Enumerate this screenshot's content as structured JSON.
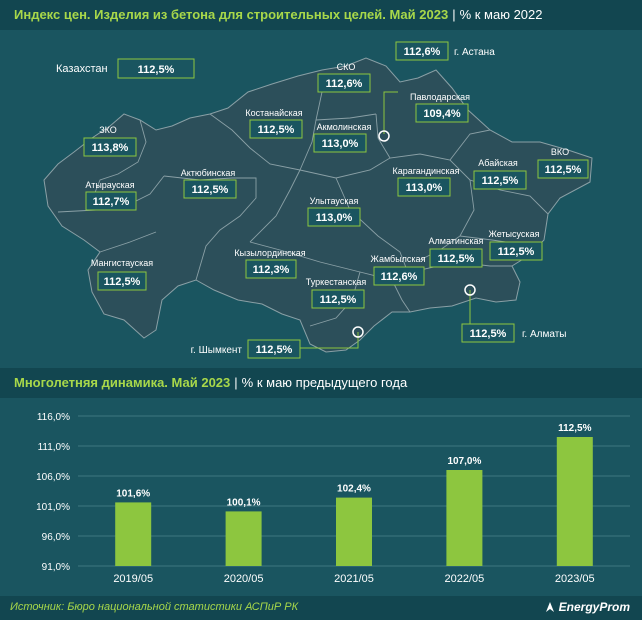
{
  "header_map": {
    "title": "Индекс цен. Изделия из бетона для строительных целей. Май 2023",
    "subtitle": "% к маю 2022"
  },
  "header_chart": {
    "title": "Многолетняя динамика. Май 2023",
    "subtitle": "% к маю предыдущего года"
  },
  "map": {
    "country": {
      "name": "Казахстан",
      "value": "112,5%"
    },
    "regions": [
      {
        "id": "zko",
        "name": "ЗКО",
        "value": "113,8%"
      },
      {
        "id": "atyrau",
        "name": "Атырауская",
        "value": "112,7%"
      },
      {
        "id": "mangystau",
        "name": "Мангистауская",
        "value": "112,5%"
      },
      {
        "id": "aktobe",
        "name": "Актюбинская",
        "value": "112,5%"
      },
      {
        "id": "kostanay",
        "name": "Костанайская",
        "value": "112,5%"
      },
      {
        "id": "sko",
        "name": "СКО",
        "value": "112,6%"
      },
      {
        "id": "akmola",
        "name": "Акмолинская",
        "value": "113,0%"
      },
      {
        "id": "pavlodar",
        "name": "Павлодарская",
        "value": "109,4%"
      },
      {
        "id": "vko",
        "name": "ВКО",
        "value": "112,5%"
      },
      {
        "id": "abay",
        "name": "Абайская",
        "value": "112,5%"
      },
      {
        "id": "karaganda",
        "name": "Карагандинская",
        "value": "113,0%"
      },
      {
        "id": "ulytau",
        "name": "Улытауская",
        "value": "113,0%"
      },
      {
        "id": "kyzylorda",
        "name": "Кызылординская",
        "value": "112,3%"
      },
      {
        "id": "zhetysu",
        "name": "Жетысуская",
        "value": "112,5%"
      },
      {
        "id": "almaty_obl",
        "name": "Алматинская",
        "value": "112,5%"
      },
      {
        "id": "zhambyl",
        "name": "Жамбылская",
        "value": "112,6%"
      },
      {
        "id": "turkestan",
        "name": "Туркестанская",
        "value": "112,5%"
      }
    ],
    "cities": [
      {
        "id": "astana",
        "name": "г. Астана",
        "value": "112,6%"
      },
      {
        "id": "almaty",
        "name": "г. Алматы",
        "value": "112,5%"
      },
      {
        "id": "shymkent",
        "name": "г. Шымкент",
        "value": "112,5%"
      }
    ]
  },
  "chart_data": {
    "type": "bar",
    "categories": [
      "2019/05",
      "2020/05",
      "2021/05",
      "2022/05",
      "2023/05"
    ],
    "values": [
      101.6,
      100.1,
      102.4,
      107.0,
      112.5
    ],
    "data_labels": [
      "101,6%",
      "100,1%",
      "102,4%",
      "107,0%",
      "112,5%"
    ],
    "ylim": [
      91,
      116
    ],
    "yticks": [
      91,
      96,
      101,
      106,
      111,
      116
    ],
    "ytick_labels": [
      "91,0%",
      "96,0%",
      "101,0%",
      "106,0%",
      "111,0%",
      "116,0%"
    ],
    "grid": true,
    "bar_color": "#8dc63f"
  },
  "footer": {
    "source": "Источник: Бюро национальной статистики АСПиР РК",
    "brand": "EnergyProm"
  },
  "colors": {
    "background": "#1a5560",
    "header": "#124650",
    "map_fill": "#2c4f5a",
    "accent": "#a8d84a",
    "label_border": "#8dc63f"
  }
}
